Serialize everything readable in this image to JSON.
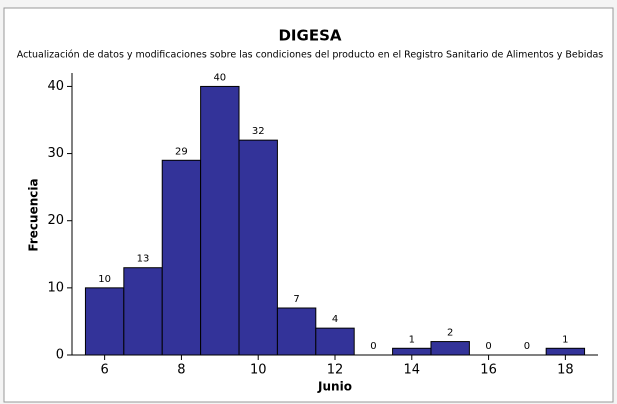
{
  "chart_data": {
    "type": "histogram",
    "title": "DIGESA",
    "subtitle": "Actualización de datos y modificaciones sobre las condiciones del producto en el Registro Sanitario de Alimentos y Bebidas",
    "x_label": "Junio",
    "y_label": "Frecuencia",
    "bins": [
      5.5,
      6.5,
      7.5,
      8.5,
      9.5,
      10.5,
      11.5,
      12.5,
      13.5,
      14.5,
      15.5,
      16.5,
      17.5,
      18.5
    ],
    "counts": [
      10,
      13,
      29,
      40,
      32,
      7,
      4,
      0,
      1,
      2,
      0,
      0,
      1
    ],
    "color": "#333399",
    "xlim": [
      5.15,
      18.85
    ],
    "xticks": [
      6,
      8,
      10,
      12,
      14,
      16,
      18
    ],
    "ylim": [
      0,
      42
    ],
    "yticks": [
      0,
      10,
      20,
      30,
      40
    ]
  }
}
